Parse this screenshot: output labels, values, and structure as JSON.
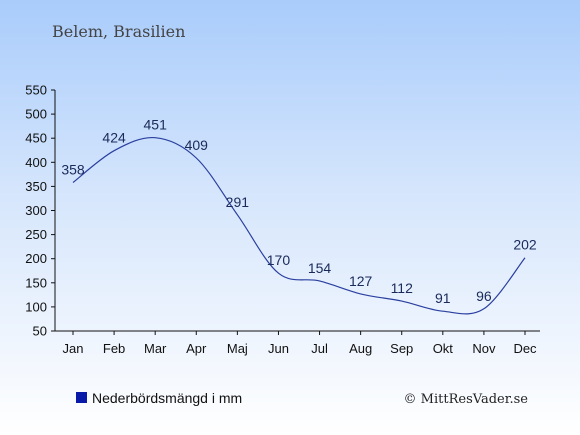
{
  "chart_data": {
    "type": "line",
    "title": "Belem, Brasilien",
    "categories": [
      "Jan",
      "Feb",
      "Mar",
      "Apr",
      "Maj",
      "Jun",
      "Jul",
      "Aug",
      "Sep",
      "Okt",
      "Nov",
      "Dec"
    ],
    "series": [
      {
        "name": "Nederbördsmängd i mm",
        "values": [
          358,
          424,
          451,
          409,
          291,
          170,
          154,
          127,
          112,
          91,
          96,
          202
        ]
      }
    ],
    "yticks": [
      50,
      100,
      150,
      200,
      250,
      300,
      350,
      400,
      450,
      500,
      550
    ],
    "ylim": [
      50,
      550
    ],
    "grid": false,
    "legend_position": "bottom-left",
    "line_color": "#2a3f9f",
    "legend_color": "#0a1aa8",
    "credit": "© MittResVader.se"
  }
}
